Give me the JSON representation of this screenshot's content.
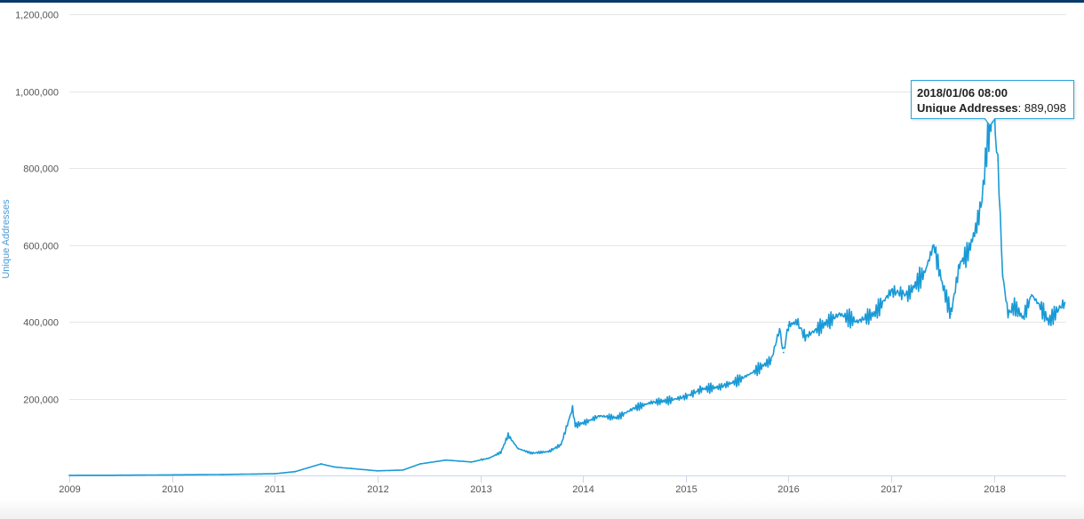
{
  "chart_data": {
    "type": "line",
    "title": "",
    "xlabel": "",
    "ylabel": "Unique Addresses",
    "xlim": [
      "2009-01-01",
      "2018-09-15"
    ],
    "ylim": [
      0,
      1200000
    ],
    "grid": true,
    "y_ticks": [
      200000,
      400000,
      600000,
      800000,
      1000000,
      1200000
    ],
    "y_tick_labels": [
      "200,000",
      "400,000",
      "600,000",
      "800,000",
      "1,000,000",
      "1,200,000"
    ],
    "x_ticks": [
      "2009-01-01",
      "2010-01-01",
      "2011-01-01",
      "2012-01-01",
      "2013-01-01",
      "2014-01-01",
      "2015-01-01",
      "2016-01-01",
      "2017-01-01",
      "2018-01-01"
    ],
    "x_tick_labels": [
      "2009",
      "2010",
      "2011",
      "2012",
      "2013",
      "2014",
      "2015",
      "2016",
      "2017",
      "2018"
    ],
    "colors": {
      "series": "#1a9ad6",
      "grid": "#e6e6e6",
      "axis": "#ccd6eb"
    },
    "series": [
      {
        "name": "Unique Addresses",
        "x": [
          "2009-01-01",
          "2009-07-01",
          "2010-01-01",
          "2010-07-01",
          "2011-01-01",
          "2011-03-15",
          "2011-06-15",
          "2011-08-01",
          "2011-10-01",
          "2012-01-01",
          "2012-04-01",
          "2012-06-01",
          "2012-09-01",
          "2012-12-01",
          "2013-02-01",
          "2013-03-15",
          "2013-04-10",
          "2013-05-15",
          "2013-07-01",
          "2013-09-01",
          "2013-10-15",
          "2013-11-25",
          "2013-12-05",
          "2014-01-15",
          "2014-03-01",
          "2014-05-01",
          "2014-07-01",
          "2014-09-01",
          "2014-11-01",
          "2015-01-01",
          "2015-03-01",
          "2015-05-01",
          "2015-07-01",
          "2015-09-01",
          "2015-11-01",
          "2015-12-01",
          "2015-12-15",
          "2016-01-01",
          "2016-02-01",
          "2016-03-01",
          "2016-05-01",
          "2016-07-01",
          "2016-09-01",
          "2016-11-01",
          "2017-01-01",
          "2017-03-01",
          "2017-05-01",
          "2017-06-01",
          "2017-07-01",
          "2017-08-01",
          "2017-09-01",
          "2017-10-01",
          "2017-11-01",
          "2017-11-20",
          "2017-12-10",
          "2017-12-25",
          "2018-01-01",
          "2018-01-06",
          "2018-01-15",
          "2018-02-01",
          "2018-02-20",
          "2018-03-15",
          "2018-04-15",
          "2018-05-15",
          "2018-06-15",
          "2018-07-15",
          "2018-08-15",
          "2018-09-10"
        ],
        "values": [
          300,
          600,
          1500,
          2500,
          4500,
          10000,
          30000,
          22000,
          18000,
          12000,
          14000,
          30000,
          40000,
          35000,
          45000,
          60000,
          105000,
          70000,
          58000,
          62000,
          80000,
          175000,
          130000,
          140000,
          155000,
          150000,
          175000,
          190000,
          195000,
          205000,
          225000,
          230000,
          245000,
          270000,
          300000,
          380000,
          320000,
          390000,
          400000,
          360000,
          390000,
          420000,
          400000,
          420000,
          480000,
          470000,
          530000,
          600000,
          500000,
          420000,
          550000,
          580000,
          650000,
          720000,
          880000,
          930000,
          950000,
          889098,
          820000,
          520000,
          420000,
          440000,
          410000,
          470000,
          440000,
          400000,
          430000,
          450000
        ]
      }
    ],
    "tooltip": {
      "date": "2018/01/06 08:00",
      "label": "Unique Addresses",
      "value": "889,098"
    }
  }
}
